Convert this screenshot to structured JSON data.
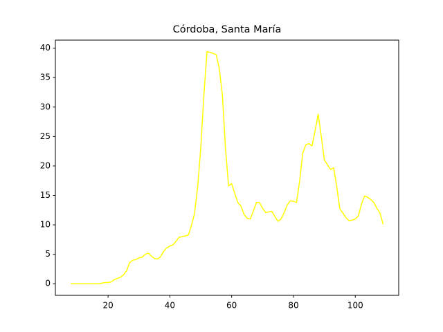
{
  "chart_data": {
    "type": "line",
    "title": "Córdoba, Santa María",
    "x": [
      8,
      9,
      10,
      11,
      12,
      13,
      14,
      15,
      16,
      17,
      18,
      19,
      20,
      21,
      22,
      23,
      24,
      25,
      26,
      27,
      28,
      29,
      30,
      31,
      32,
      33,
      34,
      35,
      36,
      37,
      38,
      39,
      40,
      41,
      42,
      43,
      44,
      45,
      46,
      47,
      48,
      49,
      50,
      51,
      52,
      53,
      54,
      55,
      56,
      57,
      58,
      59,
      60,
      61,
      62,
      63,
      64,
      65,
      66,
      67,
      68,
      69,
      70,
      71,
      72,
      73,
      74,
      75,
      76,
      77,
      78,
      79,
      80,
      81,
      82,
      83,
      84,
      85,
      86,
      87,
      88,
      89,
      90,
      91,
      92,
      93,
      94,
      95,
      96,
      97,
      98,
      99,
      100,
      101,
      102,
      103,
      104,
      105,
      106,
      107,
      108,
      109
    ],
    "series": [
      {
        "color": "#ffff00",
        "values": [
          0,
          0,
          0,
          0,
          0,
          0,
          0,
          0,
          0,
          0,
          0.1,
          0.2,
          0.2,
          0.3,
          0.7,
          0.9,
          1.1,
          1.5,
          2.2,
          3.6,
          4.0,
          4.1,
          4.4,
          4.5,
          5.0,
          5.2,
          4.7,
          4.3,
          4.2,
          4.6,
          5.5,
          6.1,
          6.4,
          6.6,
          7.2,
          7.9,
          8.0,
          8.1,
          8.3,
          9.9,
          12.0,
          16.5,
          23.0,
          32.0,
          39.4,
          39.3,
          39.1,
          38.9,
          36.5,
          32.0,
          23.0,
          16.6,
          17.0,
          15.3,
          13.8,
          13.2,
          11.8,
          11.1,
          11.0,
          12.3,
          13.8,
          13.8,
          12.8,
          12.1,
          12.2,
          12.3,
          11.4,
          10.6,
          11.0,
          12.1,
          13.4,
          14.1,
          14.0,
          13.8,
          17.5,
          22.2,
          23.6,
          23.8,
          23.4,
          26.0,
          28.8,
          25.0,
          21.0,
          20.2,
          19.4,
          19.7,
          16.5,
          12.7,
          12.0,
          11.2,
          10.7,
          10.8,
          11.0,
          11.5,
          13.5,
          14.9,
          14.7,
          14.3,
          13.8,
          12.8,
          12.0,
          10.1
        ]
      }
    ],
    "xlim": [
      2.95,
      114.05
    ],
    "ylim": [
      -1.97,
      41.37
    ],
    "xticks": [
      20,
      40,
      60,
      80,
      100
    ],
    "yticks": [
      0,
      5,
      10,
      15,
      20,
      25,
      30,
      35,
      40
    ]
  }
}
